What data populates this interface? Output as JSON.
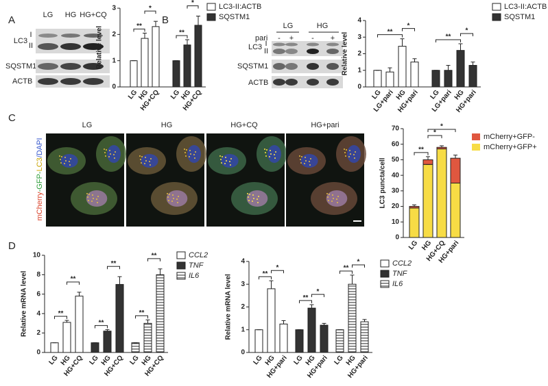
{
  "panel_labels": [
    "A",
    "B",
    "C",
    "D"
  ],
  "blot_a": {
    "lanes": [
      "LG",
      "HG",
      "HG+CQ"
    ],
    "rows": [
      "LC3",
      "SQSTM1",
      "ACTB"
    ],
    "lc3_forms": [
      "I",
      "II"
    ]
  },
  "blot_b": {
    "groups": [
      "LG",
      "HG"
    ],
    "treatment": "pari",
    "treatment_states": [
      "-",
      "+",
      "-",
      "+"
    ],
    "rows": [
      "LC3",
      "SQSTM1",
      "ACTB"
    ],
    "lc3_forms": [
      "I",
      "II"
    ]
  },
  "imaging": {
    "conditions": [
      "LG",
      "HG",
      "HG+CQ",
      "HG+pari"
    ],
    "stain_label": [
      "mCherry",
      "-GFP-",
      "LC3",
      "/DAPI"
    ]
  },
  "chart_data": [
    {
      "type": "bar",
      "ylabel": "Relative level",
      "categories": [
        "LG",
        "HG",
        "HG+CQ"
      ],
      "ylim": [
        0,
        3
      ],
      "yticks": [
        0,
        1,
        2,
        3
      ],
      "series": [
        {
          "name": "LC3-II:ACTB",
          "color": "#ffffff",
          "values": [
            1,
            1.85,
            2.3
          ],
          "errors": [
            0,
            0.2,
            0.2
          ]
        },
        {
          "name": "SQSTM1",
          "color": "#333333",
          "values": [
            1,
            1.6,
            2.35
          ],
          "errors": [
            0,
            0.2,
            0.35
          ]
        }
      ],
      "annotations": [
        "**",
        "*",
        "**",
        "*"
      ]
    },
    {
      "type": "bar",
      "ylabel": "Relative level",
      "categories": [
        "LG",
        "LG+pari",
        "HG",
        "HG+pari"
      ],
      "ylim": [
        0,
        4
      ],
      "yticks": [
        0,
        1,
        2,
        3,
        4
      ],
      "series": [
        {
          "name": "LC3-II:ACTB",
          "color": "#ffffff",
          "values": [
            1,
            0.9,
            2.45,
            1.5
          ],
          "errors": [
            0,
            0.25,
            0.45,
            0.2
          ]
        },
        {
          "name": "SQSTM1",
          "color": "#333333",
          "values": [
            1,
            1.0,
            2.2,
            1.3
          ],
          "errors": [
            0,
            0.3,
            0.4,
            0.2
          ]
        }
      ],
      "annotations": [
        "**",
        "*",
        "**",
        "*"
      ]
    },
    {
      "type": "bar",
      "stacked": true,
      "ylabel": "LC3 puncta/cell",
      "categories": [
        "LG",
        "HG",
        "HG+CQ",
        "HG+pari"
      ],
      "ylim": [
        0,
        70
      ],
      "yticks": [
        0,
        10,
        20,
        30,
        40,
        50,
        60,
        70
      ],
      "series": [
        {
          "name": "mCherry+GFP+",
          "color": "#f7dc45",
          "values": [
            19,
            47,
            57,
            35
          ],
          "errors": [
            0,
            0,
            0,
            0
          ]
        },
        {
          "name": "mCherry+GFP-",
          "color": "#e0573f",
          "values": [
            1,
            3,
            1,
            16
          ],
          "errors": [
            1,
            2,
            1,
            2
          ]
        }
      ],
      "annotations": [
        "**",
        "*",
        "*"
      ]
    },
    {
      "type": "bar",
      "ylabel": "Relative mRNA level",
      "categories": [
        "LG",
        "HG",
        "HG+CQ"
      ],
      "ylim": [
        0,
        10
      ],
      "yticks": [
        0,
        2,
        4,
        6,
        8,
        10
      ],
      "series": [
        {
          "name": "CCL2",
          "color": "#ffffff",
          "values": [
            1,
            3.1,
            5.8
          ],
          "errors": [
            0,
            0.2,
            0.4
          ]
        },
        {
          "name": "TNF",
          "color": "#333333",
          "values": [
            1,
            2.2,
            7.0
          ],
          "errors": [
            0,
            0.15,
            0.8
          ]
        },
        {
          "name": "IL6",
          "color": "#ffffff",
          "pattern": "hatch",
          "values": [
            1,
            3.0,
            8.0
          ],
          "errors": [
            0,
            0.35,
            0.6
          ]
        }
      ],
      "annotations": [
        "**",
        "**",
        "**",
        "**",
        "**",
        "**"
      ]
    },
    {
      "type": "bar",
      "ylabel": "Relative mRNA level",
      "categories": [
        "LG",
        "HG",
        "HG+pari"
      ],
      "ylim": [
        0,
        4
      ],
      "yticks": [
        0,
        1,
        2,
        3,
        4
      ],
      "series": [
        {
          "name": "CCL2",
          "color": "#ffffff",
          "values": [
            1,
            2.8,
            1.25
          ],
          "errors": [
            0,
            0.35,
            0.15
          ]
        },
        {
          "name": "TNF",
          "color": "#333333",
          "values": [
            1,
            1.95,
            1.2
          ],
          "errors": [
            0,
            0.15,
            0.08
          ]
        },
        {
          "name": "IL6",
          "color": "#ffffff",
          "pattern": "hatch",
          "values": [
            1,
            3.0,
            1.35
          ],
          "errors": [
            0,
            0.4,
            0.1
          ]
        }
      ],
      "annotations": [
        "**",
        "*",
        "**",
        "*",
        "**",
        "*"
      ]
    }
  ]
}
